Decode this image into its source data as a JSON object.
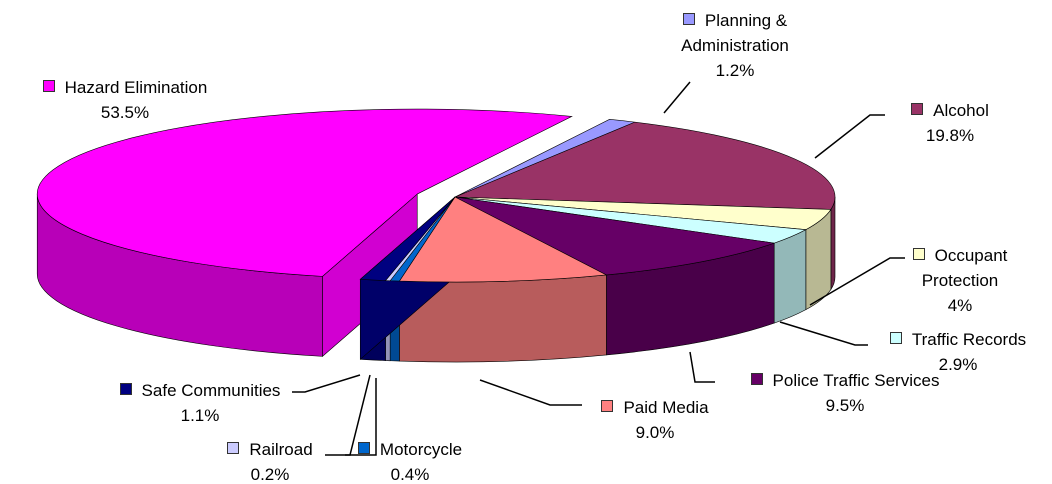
{
  "chart_data": {
    "type": "pie",
    "categories": [
      "Planning & Administration",
      "Alcohol",
      "Occupant Protection",
      "Traffic Records",
      "Police Traffic Services",
      "Paid Media",
      "Motorcycle",
      "Railroad",
      "Safe Communities",
      "Hazard Elimination"
    ],
    "values": [
      1.2,
      19.8,
      4,
      2.9,
      9.5,
      9.0,
      0.4,
      0.2,
      1.1,
      53.5
    ],
    "value_labels": [
      "1.2%",
      "19.8%",
      "4%",
      "2.9%",
      "9.5%",
      "9.0%",
      "0.4%",
      "0.2%",
      "1.1%",
      "53.5%"
    ],
    "colors": [
      "#9999ff",
      "#993366",
      "#ffffcc",
      "#ccffff",
      "#660066",
      "#ff8080",
      "#0066cc",
      "#ccccff",
      "#000080",
      "#ff00ff"
    ]
  }
}
